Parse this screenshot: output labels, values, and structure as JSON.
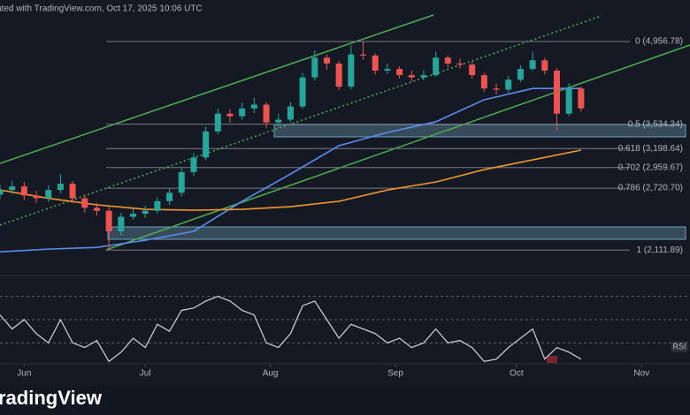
{
  "chart_data": {
    "type": "candlestick",
    "title": "ated with TradingView.com, Oct 17, 2025 10:06 UTC",
    "brand": "radingView",
    "log_scale": true,
    "ylim": [
      1917,
      5874
    ],
    "xlim": [
      "2025-05-26",
      "2025-11-13"
    ],
    "xticks": [
      {
        "value": "2025-06-01",
        "label": "Jun"
      },
      {
        "value": "2025-07-01",
        "label": "Jul"
      },
      {
        "value": "2025-08-01",
        "label": "Aug"
      },
      {
        "value": "2025-09-01",
        "label": "Sep"
      },
      {
        "value": "2025-10-01",
        "label": "Oct"
      },
      {
        "value": "2025-11-01",
        "label": "Nov"
      }
    ],
    "up_color": "#26a69a",
    "down_color": "#ef5350",
    "x": [
      "2025-05-26",
      "2025-05-29",
      "2025-06-01",
      "2025-06-04",
      "2025-06-07",
      "2025-06-10",
      "2025-06-13",
      "2025-06-16",
      "2025-06-19",
      "2025-06-22",
      "2025-06-25",
      "2025-06-28",
      "2025-07-01",
      "2025-07-04",
      "2025-07-07",
      "2025-07-10",
      "2025-07-13",
      "2025-07-16",
      "2025-07-19",
      "2025-07-22",
      "2025-07-25",
      "2025-07-28",
      "2025-07-31",
      "2025-08-03",
      "2025-08-06",
      "2025-08-09",
      "2025-08-12",
      "2025-08-15",
      "2025-08-18",
      "2025-08-21",
      "2025-08-24",
      "2025-08-27",
      "2025-08-30",
      "2025-09-02",
      "2025-09-05",
      "2025-09-08",
      "2025-09-11",
      "2025-09-14",
      "2025-09-17",
      "2025-09-20",
      "2025-09-23",
      "2025-09-26",
      "2025-09-29",
      "2025-10-02",
      "2025-10-05",
      "2025-10-08",
      "2025-10-11",
      "2025-10-14",
      "2025-10-17"
    ],
    "ohlc": {
      "open": [
        2650,
        2700,
        2740,
        2640,
        2610,
        2700,
        2770,
        2610,
        2510,
        2480,
        2280,
        2420,
        2450,
        2480,
        2580,
        2670,
        2905,
        3085,
        3430,
        3690,
        3650,
        3770,
        3830,
        3560,
        3600,
        3800,
        4280,
        4640,
        4530,
        4120,
        4700,
        4680,
        4400,
        4430,
        4320,
        4280,
        4320,
        4640,
        4530,
        4510,
        4320,
        4090,
        4070,
        4240,
        4430,
        4590,
        4400,
        3690,
        4090
      ],
      "high": [
        2760,
        2800,
        2790,
        2690,
        2750,
        2880,
        2800,
        2650,
        2560,
        2520,
        2460,
        2500,
        2530,
        2620,
        2720,
        2960,
        3140,
        3500,
        3770,
        3760,
        3860,
        3940,
        3870,
        3690,
        3870,
        4360,
        4780,
        4700,
        4580,
        4880,
        4950,
        4720,
        4530,
        4480,
        4400,
        4410,
        4760,
        4680,
        4620,
        4560,
        4360,
        4180,
        4310,
        4500,
        4760,
        4640,
        4450,
        4180,
        4120
      ],
      "low": [
        2600,
        2660,
        2590,
        2560,
        2570,
        2660,
        2560,
        2460,
        2430,
        2120,
        2240,
        2390,
        2410,
        2450,
        2540,
        2630,
        2860,
        3050,
        3390,
        3560,
        3600,
        3700,
        3480,
        3500,
        3560,
        3760,
        4230,
        4420,
        4060,
        4080,
        4600,
        4330,
        4340,
        4260,
        4210,
        4230,
        4290,
        4460,
        4440,
        4260,
        4030,
        3990,
        4020,
        4200,
        4390,
        4330,
        3440,
        3650,
        3720
      ],
      "close": [
        2700,
        2740,
        2640,
        2610,
        2700,
        2770,
        2610,
        2510,
        2480,
        2280,
        2420,
        2450,
        2480,
        2580,
        2670,
        2905,
        3085,
        3430,
        3690,
        3650,
        3770,
        3830,
        3560,
        3600,
        3800,
        4280,
        4640,
        4530,
        4120,
        4700,
        4680,
        4400,
        4430,
        4320,
        4280,
        4320,
        4640,
        4530,
        4510,
        4320,
        4090,
        4070,
        4240,
        4430,
        4590,
        4400,
        3690,
        4090,
        3770
      ]
    },
    "moving_averages": [
      {
        "color": "#5b8def",
        "x": [
          "2025-05-26",
          "2025-06-07",
          "2025-06-19",
          "2025-07-01",
          "2025-07-13",
          "2025-07-25",
          "2025-08-06",
          "2025-08-18",
          "2025-08-30",
          "2025-09-11",
          "2025-09-23",
          "2025-10-05",
          "2025-10-17"
        ],
        "values": [
          2097,
          2120,
          2135,
          2198,
          2280,
          2578,
          2883,
          3237,
          3417,
          3569,
          3906,
          4090,
          4090
        ]
      },
      {
        "color": "#f0962e",
        "x": [
          "2025-05-26",
          "2025-06-07",
          "2025-06-19",
          "2025-07-01",
          "2025-07-13",
          "2025-07-25",
          "2025-08-06",
          "2025-08-18",
          "2025-08-30",
          "2025-09-11",
          "2025-09-23",
          "2025-10-05",
          "2025-10-17"
        ],
        "values": [
          2700,
          2610,
          2541,
          2495,
          2486,
          2495,
          2522,
          2578,
          2700,
          2790,
          2935,
          3054,
          3179
        ]
      }
    ],
    "fib_levels": [
      {
        "value": 4956.78,
        "label": "0 (4,956.78)"
      },
      {
        "value": 3534.34,
        "label": "0.5 (3,534.34)"
      },
      {
        "value": 3198.64,
        "label": "0.618 (3,198.64)"
      },
      {
        "value": 2959.67,
        "label": "0.702 (2,959.67)"
      },
      {
        "value": 2720.7,
        "label": "0.786 (2,720.70)"
      },
      {
        "value": 2111.89,
        "label": "1 (2,111.89)"
      }
    ],
    "rsi": {
      "label": "RSI",
      "color": "#d1d4dc",
      "ylim": [
        12,
        88
      ],
      "levels": [
        70,
        50,
        30
      ],
      "values": [
        54,
        42,
        50,
        38,
        30,
        50,
        30,
        26,
        32,
        14,
        22,
        34,
        26,
        46,
        40,
        58,
        60,
        66,
        70,
        66,
        58,
        54,
        30,
        26,
        38,
        62,
        66,
        50,
        34,
        46,
        42,
        38,
        30,
        34,
        26,
        30,
        42,
        30,
        32,
        26,
        14,
        16,
        26,
        34,
        42,
        16,
        26,
        22,
        16
      ]
    }
  }
}
